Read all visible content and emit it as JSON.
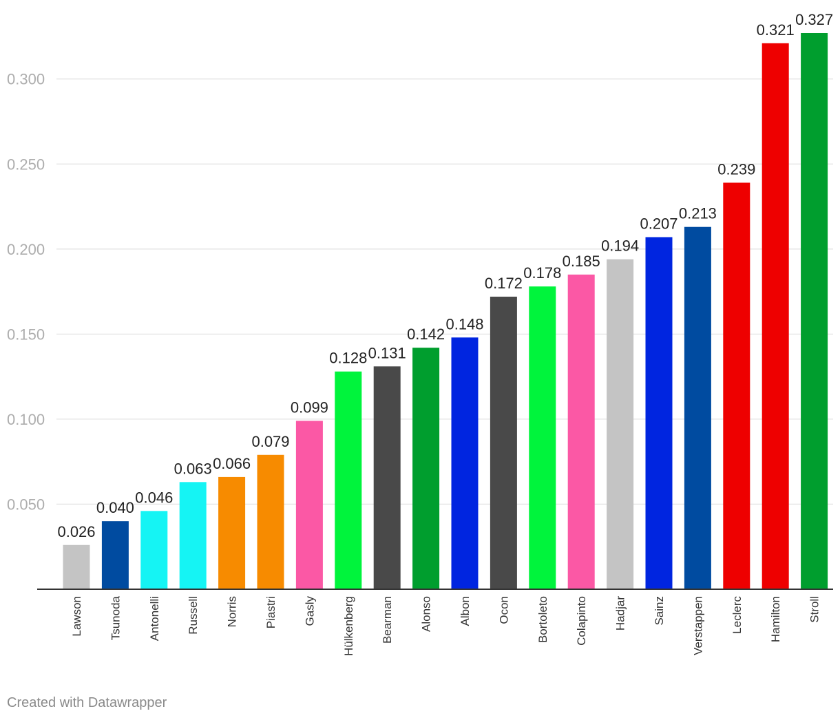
{
  "chart_data": {
    "type": "bar",
    "categories": [
      "Lawson",
      "Tsunoda",
      "Antonelli",
      "Russell",
      "Norris",
      "Piastri",
      "Gasly",
      "Hülkenberg",
      "Bearman",
      "Alonso",
      "Albon",
      "Ocon",
      "Bortoleto",
      "Colapinto",
      "Hadjar",
      "Sainz",
      "Verstappen",
      "Leclerc",
      "Hamilton",
      "Stroll"
    ],
    "values": [
      0.026,
      0.04,
      0.046,
      0.063,
      0.066,
      0.079,
      0.099,
      0.128,
      0.131,
      0.142,
      0.148,
      0.172,
      0.178,
      0.185,
      0.194,
      0.207,
      0.213,
      0.239,
      0.321,
      0.327
    ],
    "value_labels": [
      "0.026",
      "0.040",
      "0.046",
      "0.063",
      "0.066",
      "0.079",
      "0.099",
      "0.128",
      "0.131",
      "0.142",
      "0.148",
      "0.172",
      "0.178",
      "0.185",
      "0.194",
      "0.207",
      "0.213",
      "0.239",
      "0.321",
      "0.327"
    ],
    "colors": [
      "#c4c4c4",
      "#004ba0",
      "#15f4f4",
      "#15f4f4",
      "#f78b00",
      "#f78b00",
      "#fb58a5",
      "#00f43c",
      "#494949",
      "#009e2e",
      "#0025e0",
      "#494949",
      "#00f43c",
      "#fb58a5",
      "#c4c4c4",
      "#0025e0",
      "#004ba0",
      "#ee0000",
      "#ee0000",
      "#009e2e"
    ],
    "y_ticks": [
      "0.050",
      "0.100",
      "0.150",
      "0.200",
      "0.250",
      "0.300"
    ],
    "y_tick_values": [
      0.05,
      0.1,
      0.15,
      0.2,
      0.25,
      0.3
    ],
    "ylim": [
      0,
      0.327
    ],
    "title": "",
    "xlabel": "",
    "ylabel": "",
    "grid": true,
    "legend": "none"
  },
  "footer": {
    "credit": "Created with Datawrapper"
  }
}
